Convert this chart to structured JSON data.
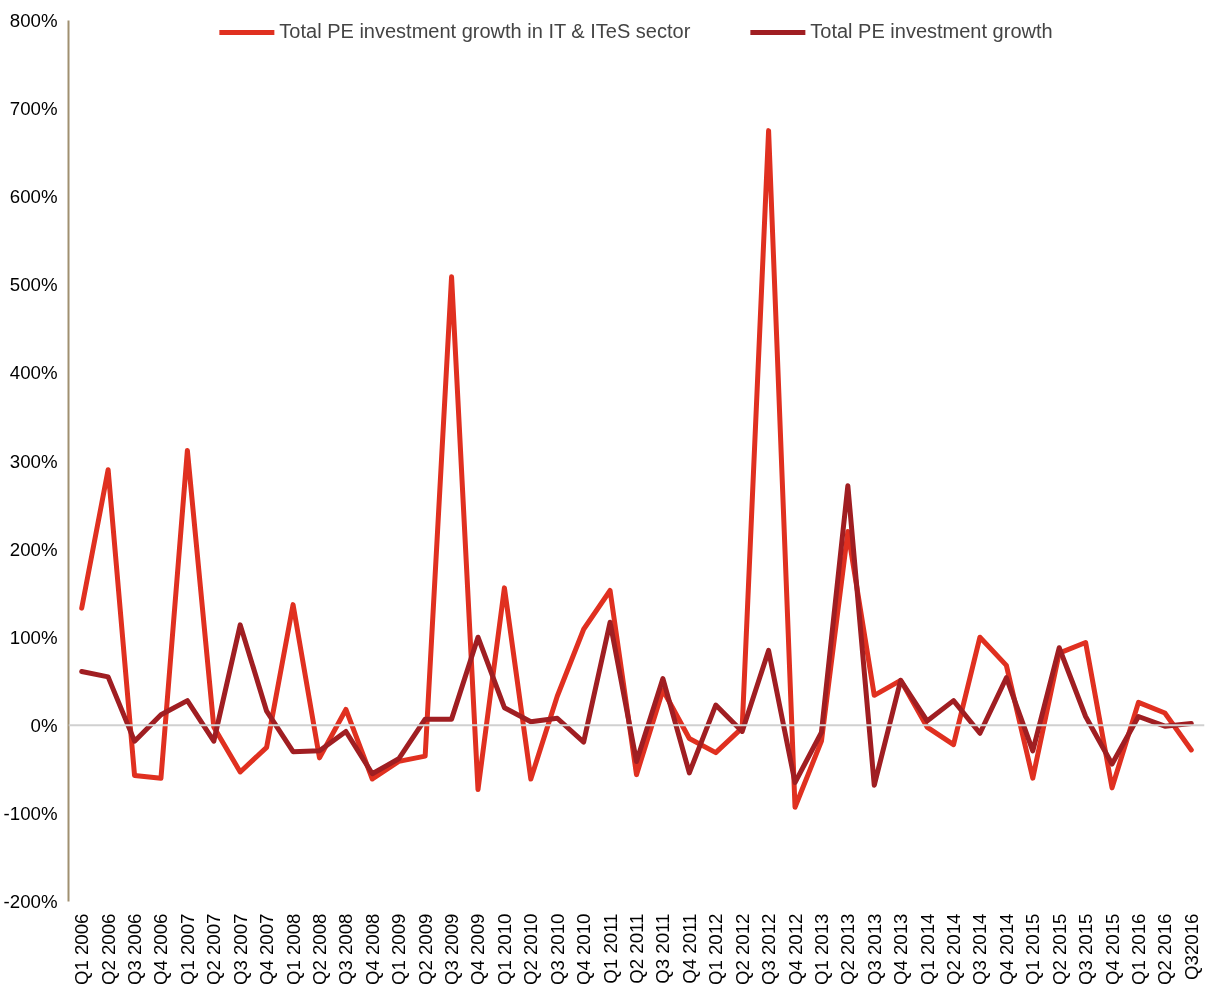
{
  "chart_data": {
    "type": "line",
    "categories": [
      "Q1 2006",
      "Q2 2006",
      "Q3 2006",
      "Q4 2006",
      "Q1 2007",
      "Q2 2007",
      "Q3 2007",
      "Q4 2007",
      "Q1 2008",
      "Q2 2008",
      "Q3 2008",
      "Q4 2008",
      "Q1 2009",
      "Q2 2009",
      "Q3 2009",
      "Q4 2009",
      "Q1 2010",
      "Q2 2010",
      "Q3 2010",
      "Q4 2010",
      "Q1 2011",
      "Q2 2011",
      "Q3 2011",
      "Q4 2011",
      "Q1 2012",
      "Q2 2012",
      "Q3 2012",
      "Q4 2012",
      "Q1 2013",
      "Q2 2013",
      "Q3 2013",
      "Q4 2013",
      "Q1 2014",
      "Q2 2014",
      "Q3 2014",
      "Q4 2014",
      "Q1 2015",
      "Q2 2015",
      "Q3 2015",
      "Q4 2015",
      "Q1 2016",
      "Q2 2016",
      "Q32016"
    ],
    "series": [
      {
        "name": "Total PE investment growth in IT & ITeS sector",
        "color": "#e03020",
        "values": [
          133,
          290,
          -57,
          -60,
          312,
          -2,
          -53,
          -25,
          137,
          -37,
          18,
          -61,
          -41,
          -35,
          509,
          -73,
          156,
          -61,
          33,
          109,
          153,
          -56,
          40,
          -15,
          -31,
          -3,
          675,
          -93,
          -18,
          220,
          34,
          51,
          -2,
          -22,
          100,
          68,
          -60,
          82,
          94,
          -71,
          26,
          14,
          -28
        ]
      },
      {
        "name": "Total PE investment growth",
        "color": "#a01e22",
        "values": [
          61,
          55,
          -18,
          12,
          28,
          -18,
          114,
          16,
          -30,
          -29,
          -7,
          -55,
          -38,
          7,
          7,
          100,
          20,
          4,
          8,
          -19,
          117,
          -41,
          53,
          -54,
          23,
          -7,
          85,
          -65,
          -8,
          272,
          -68,
          51,
          5,
          28,
          -9,
          54,
          -29,
          88,
          10,
          -44,
          10,
          -1,
          2
        ]
      }
    ],
    "ylim": [
      -200,
      800
    ],
    "yticks": [
      {
        "value": -200,
        "label": "-200%"
      },
      {
        "value": -100,
        "label": "-100%"
      },
      {
        "value": 0,
        "label": "0%"
      },
      {
        "value": 100,
        "label": "100%"
      },
      {
        "value": 200,
        "label": "200%"
      },
      {
        "value": 300,
        "label": "300%"
      },
      {
        "value": 400,
        "label": "400%"
      },
      {
        "value": 500,
        "label": "500%"
      },
      {
        "value": 600,
        "label": "600%"
      },
      {
        "value": 700,
        "label": "700%"
      },
      {
        "value": 800,
        "label": "800%"
      }
    ],
    "ref_lines": [
      {
        "axis": "y",
        "value": 0,
        "label": null,
        "color": "#d0d0d0"
      }
    ],
    "legend": "top",
    "grid": false,
    "marker": "none",
    "line_style": "solid"
  }
}
